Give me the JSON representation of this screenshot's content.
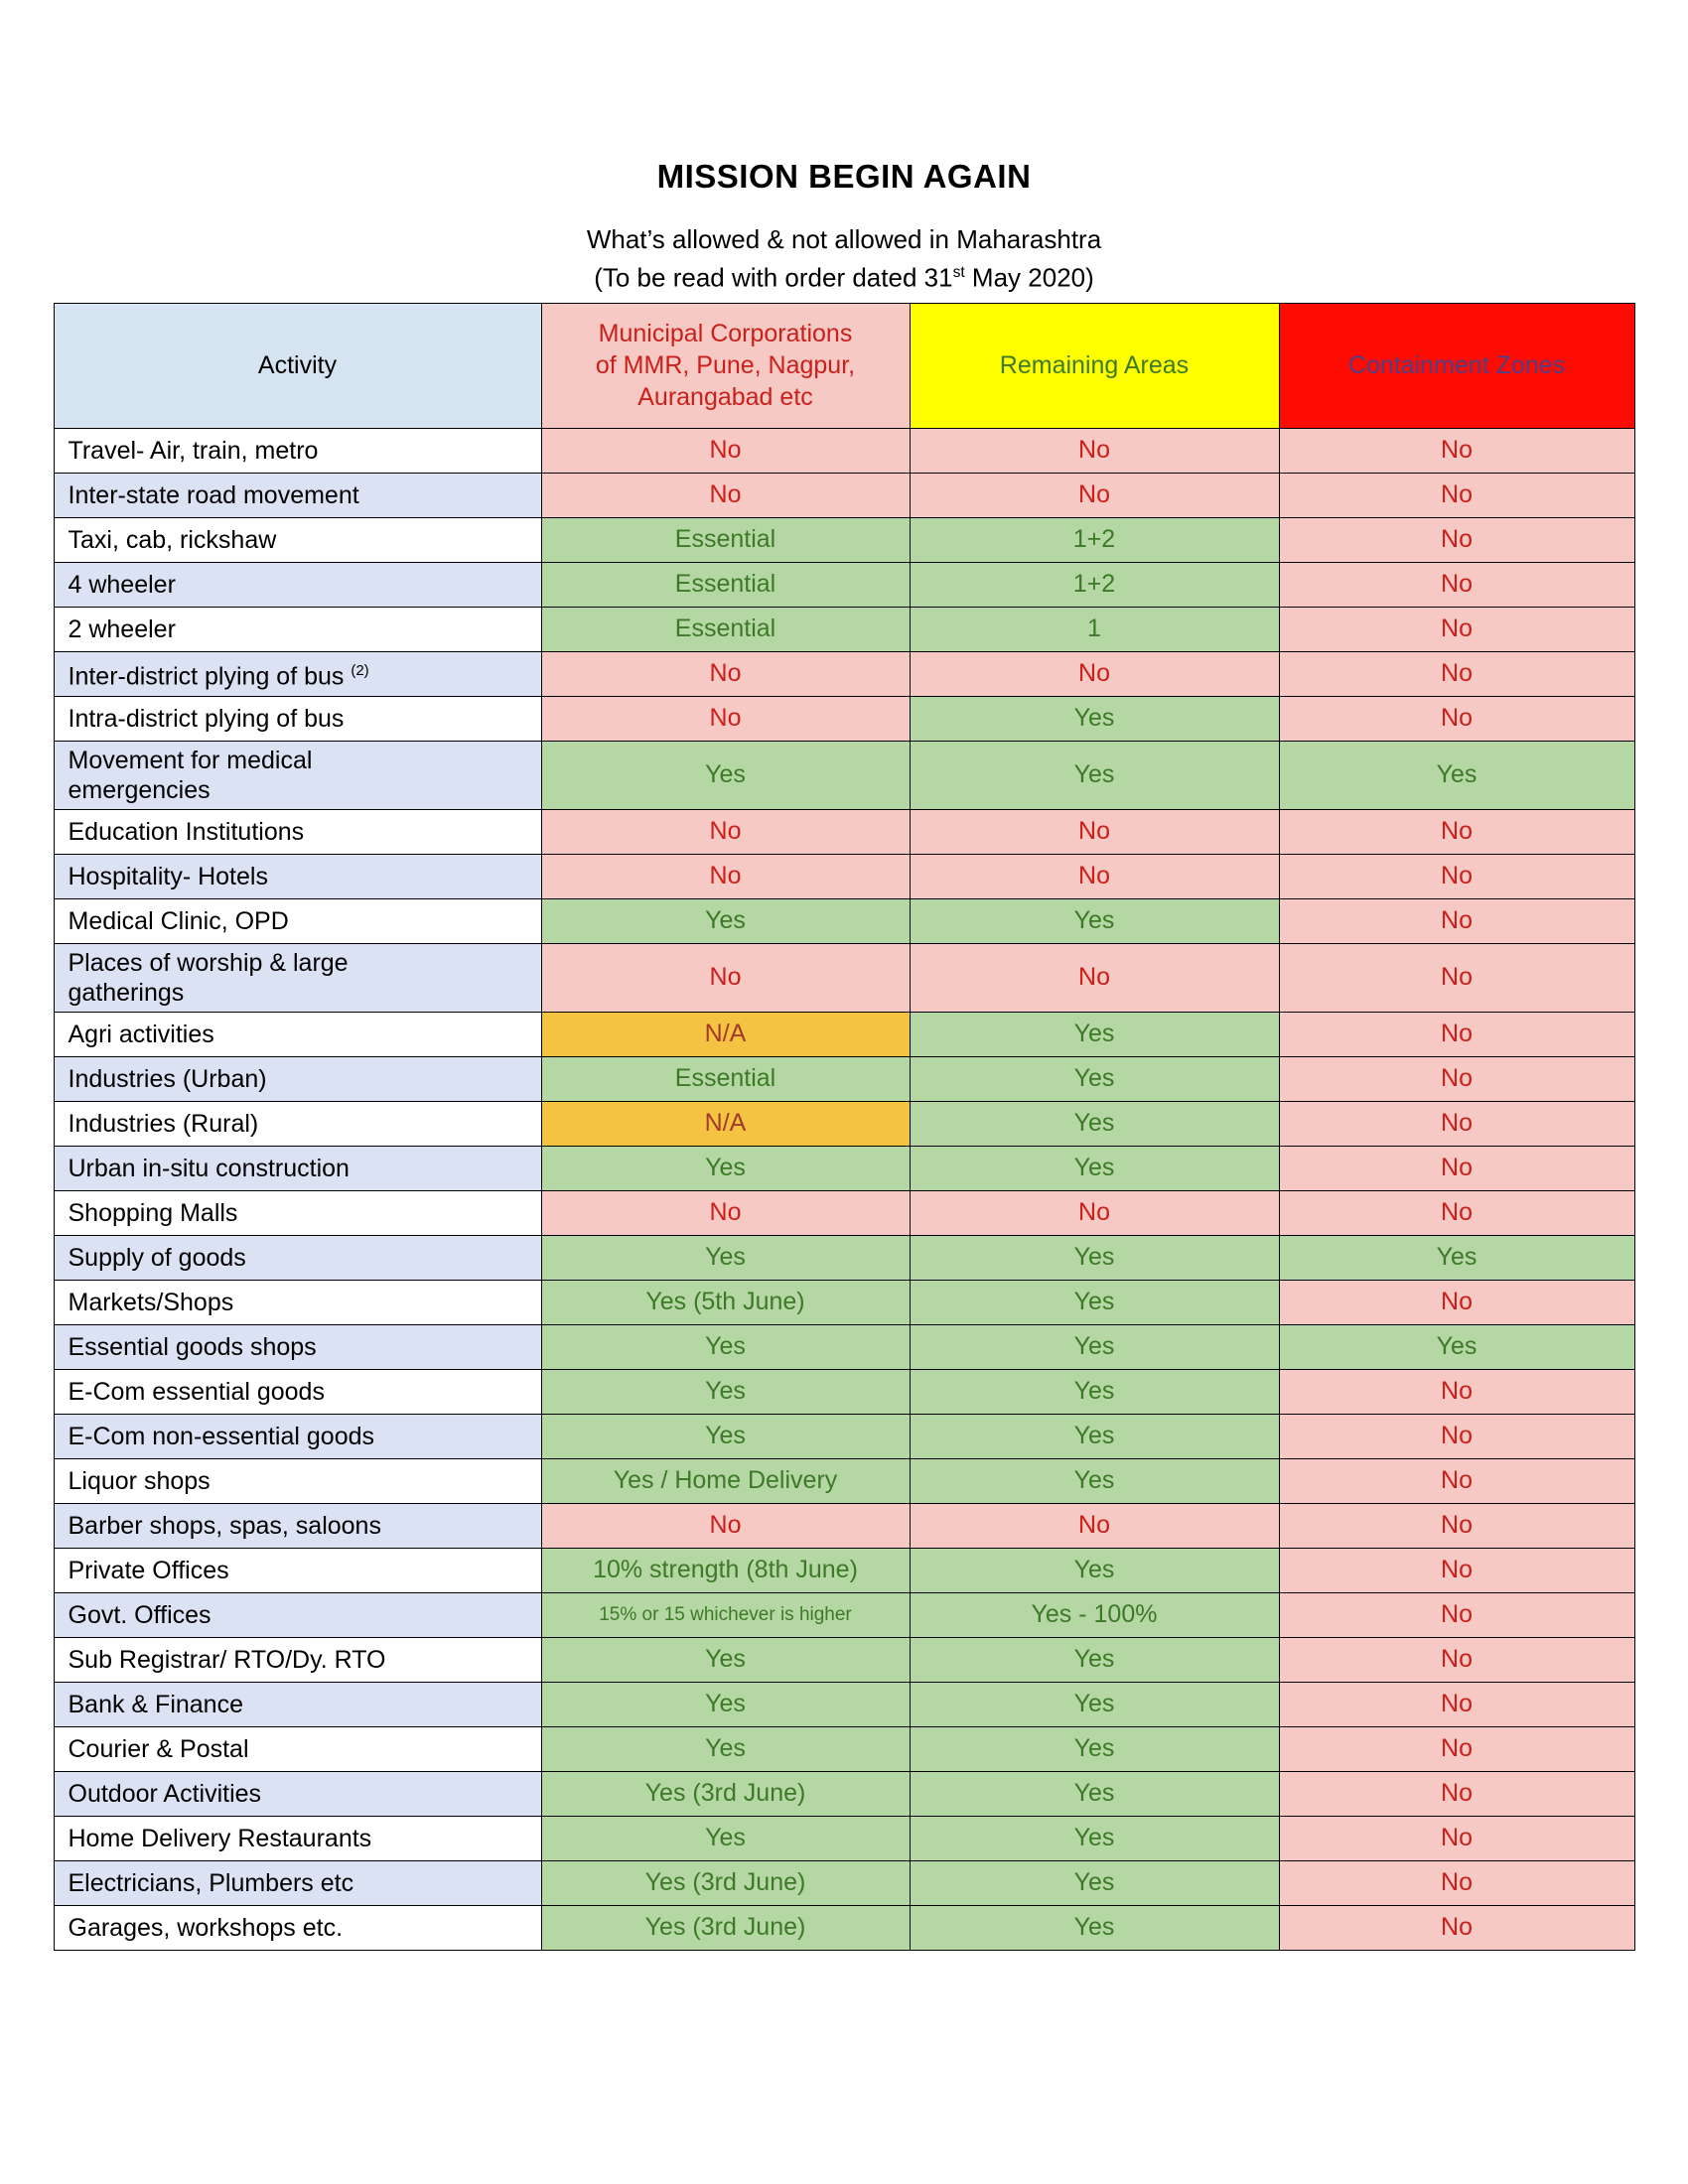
{
  "title": "MISSION BEGIN AGAIN",
  "subtitle": {
    "line1": "What’s allowed & not allowed in Maharashtra",
    "line2_pre": "(To be read with order dated 31",
    "line2_sup": "st",
    "line2_post": " May 2020)"
  },
  "colors": {
    "border": "#000000",
    "header-activity-bg": "#d6e3f1",
    "header-municipal-bg": "#f6c9c5",
    "header-municipal-text": "#cc1f1a",
    "header-remaining-bg": "#ffff00",
    "header-remaining-text": "#3d7a28",
    "header-containment-bg": "#fe0b04",
    "header-containment-text": "#4f3f85",
    "row-alt-bg": "#dbe2f4",
    "no-bg": "#f6c9c5",
    "no-text": "#cc1f1a",
    "yes-bg": "#b5d7a4",
    "yes-text": "#3d7a28",
    "na-bg": "#f5c342",
    "na-text": "#a23b2a"
  },
  "table": {
    "headers": [
      {
        "label": "Activity"
      },
      {
        "label": "Municipal Corporations\nof MMR, Pune, Nagpur,\nAurangabad etc"
      },
      {
        "label": "Remaining Areas"
      },
      {
        "label": "Containment Zones"
      }
    ],
    "rows": [
      {
        "activity": "Travel- Air, train, metro",
        "cells": [
          {
            "text": "No",
            "type": "no"
          },
          {
            "text": "No",
            "type": "no"
          },
          {
            "text": "No",
            "type": "no"
          }
        ]
      },
      {
        "activity": "Inter-state road movement",
        "cells": [
          {
            "text": "No",
            "type": "no"
          },
          {
            "text": "No",
            "type": "no"
          },
          {
            "text": "No",
            "type": "no"
          }
        ]
      },
      {
        "activity": "Taxi, cab, rickshaw",
        "cells": [
          {
            "text": "Essential",
            "type": "yes"
          },
          {
            "text": "1+2",
            "type": "yes"
          },
          {
            "text": "No",
            "type": "no"
          }
        ]
      },
      {
        "activity": "4 wheeler",
        "cells": [
          {
            "text": "Essential",
            "type": "yes"
          },
          {
            "text": "1+2",
            "type": "yes"
          },
          {
            "text": "No",
            "type": "no"
          }
        ]
      },
      {
        "activity": "2 wheeler",
        "cells": [
          {
            "text": "Essential",
            "type": "yes"
          },
          {
            "text": "1",
            "type": "yes"
          },
          {
            "text": "No",
            "type": "no"
          }
        ]
      },
      {
        "activity": "Inter-district plying of bus ",
        "activity_sup": "(2)",
        "cells": [
          {
            "text": "No",
            "type": "no"
          },
          {
            "text": "No",
            "type": "no"
          },
          {
            "text": "No",
            "type": "no"
          }
        ]
      },
      {
        "activity": "Intra-district plying of bus",
        "cells": [
          {
            "text": "No",
            "type": "no"
          },
          {
            "text": "Yes",
            "type": "yes"
          },
          {
            "text": "No",
            "type": "no"
          }
        ]
      },
      {
        "activity": "Movement for medical\nemergencies",
        "cells": [
          {
            "text": "Yes",
            "type": "yes"
          },
          {
            "text": "Yes",
            "type": "yes"
          },
          {
            "text": "Yes",
            "type": "yes"
          }
        ]
      },
      {
        "activity": "Education Institutions",
        "cells": [
          {
            "text": "No",
            "type": "no"
          },
          {
            "text": "No",
            "type": "no"
          },
          {
            "text": "No",
            "type": "no"
          }
        ]
      },
      {
        "activity": "Hospitality- Hotels",
        "cells": [
          {
            "text": "No",
            "type": "no"
          },
          {
            "text": "No",
            "type": "no"
          },
          {
            "text": "No",
            "type": "no"
          }
        ]
      },
      {
        "activity": "Medical Clinic, OPD",
        "cells": [
          {
            "text": "Yes",
            "type": "yes"
          },
          {
            "text": "Yes",
            "type": "yes"
          },
          {
            "text": "No",
            "type": "no"
          }
        ]
      },
      {
        "activity": "Places of worship & large\ngatherings",
        "cells": [
          {
            "text": "No",
            "type": "no"
          },
          {
            "text": "No",
            "type": "no"
          },
          {
            "text": "No",
            "type": "no"
          }
        ]
      },
      {
        "activity": "Agri activities",
        "cells": [
          {
            "text": "N/A",
            "type": "na"
          },
          {
            "text": "Yes",
            "type": "yes"
          },
          {
            "text": "No",
            "type": "no"
          }
        ]
      },
      {
        "activity": "Industries (Urban)",
        "cells": [
          {
            "text": "Essential",
            "type": "yes"
          },
          {
            "text": "Yes",
            "type": "yes"
          },
          {
            "text": "No",
            "type": "no"
          }
        ]
      },
      {
        "activity": "Industries (Rural)",
        "cells": [
          {
            "text": "N/A",
            "type": "na"
          },
          {
            "text": "Yes",
            "type": "yes"
          },
          {
            "text": "No",
            "type": "no"
          }
        ]
      },
      {
        "activity": "Urban in-situ construction",
        "cells": [
          {
            "text": "Yes",
            "type": "yes"
          },
          {
            "text": "Yes",
            "type": "yes"
          },
          {
            "text": "No",
            "type": "no"
          }
        ]
      },
      {
        "activity": "Shopping Malls",
        "cells": [
          {
            "text": "No",
            "type": "no"
          },
          {
            "text": "No",
            "type": "no"
          },
          {
            "text": "No",
            "type": "no"
          }
        ]
      },
      {
        "activity": "Supply of goods",
        "cells": [
          {
            "text": "Yes",
            "type": "yes"
          },
          {
            "text": "Yes",
            "type": "yes"
          },
          {
            "text": "Yes",
            "type": "yes"
          }
        ]
      },
      {
        "activity": "Markets/Shops",
        "cells": [
          {
            "text": "Yes (5th June)",
            "type": "yes"
          },
          {
            "text": "Yes",
            "type": "yes"
          },
          {
            "text": "No",
            "type": "no"
          }
        ]
      },
      {
        "activity": "Essential goods shops",
        "cells": [
          {
            "text": "Yes",
            "type": "yes"
          },
          {
            "text": "Yes",
            "type": "yes"
          },
          {
            "text": "Yes",
            "type": "yes"
          }
        ]
      },
      {
        "activity": "E-Com essential goods",
        "cells": [
          {
            "text": "Yes",
            "type": "yes"
          },
          {
            "text": "Yes",
            "type": "yes"
          },
          {
            "text": "No",
            "type": "no"
          }
        ]
      },
      {
        "activity": "E-Com non-essential goods",
        "cells": [
          {
            "text": "Yes",
            "type": "yes"
          },
          {
            "text": "Yes",
            "type": "yes"
          },
          {
            "text": "No",
            "type": "no"
          }
        ]
      },
      {
        "activity": "Liquor shops",
        "cells": [
          {
            "text": "Yes / Home Delivery",
            "type": "yes"
          },
          {
            "text": "Yes",
            "type": "yes"
          },
          {
            "text": "No",
            "type": "no"
          }
        ]
      },
      {
        "activity": "Barber shops, spas, saloons",
        "cells": [
          {
            "text": "No",
            "type": "no"
          },
          {
            "text": "No",
            "type": "no"
          },
          {
            "text": "No",
            "type": "no"
          }
        ]
      },
      {
        "activity": "Private Offices",
        "cells": [
          {
            "text": "10% strength (8th June)",
            "type": "yes"
          },
          {
            "text": "Yes",
            "type": "yes"
          },
          {
            "text": "No",
            "type": "no"
          }
        ]
      },
      {
        "activity": "Govt. Offices",
        "cells": [
          {
            "text": "15% or 15 whichever is higher",
            "type": "yes",
            "small": true
          },
          {
            "text": "Yes - 100%",
            "type": "yes"
          },
          {
            "text": "No",
            "type": "no"
          }
        ]
      },
      {
        "activity": "Sub Registrar/ RTO/Dy. RTO",
        "cells": [
          {
            "text": "Yes",
            "type": "yes"
          },
          {
            "text": "Yes",
            "type": "yes"
          },
          {
            "text": "No",
            "type": "no"
          }
        ]
      },
      {
        "activity": "Bank & Finance",
        "cells": [
          {
            "text": "Yes",
            "type": "yes"
          },
          {
            "text": "Yes",
            "type": "yes"
          },
          {
            "text": "No",
            "type": "no"
          }
        ]
      },
      {
        "activity": "Courier & Postal",
        "cells": [
          {
            "text": "Yes",
            "type": "yes"
          },
          {
            "text": "Yes",
            "type": "yes"
          },
          {
            "text": "No",
            "type": "no"
          }
        ]
      },
      {
        "activity": "Outdoor Activities",
        "cells": [
          {
            "text": "Yes (3rd June)",
            "type": "yes"
          },
          {
            "text": "Yes",
            "type": "yes"
          },
          {
            "text": "No",
            "type": "no"
          }
        ]
      },
      {
        "activity": "Home Delivery Restaurants",
        "cells": [
          {
            "text": "Yes",
            "type": "yes"
          },
          {
            "text": "Yes",
            "type": "yes"
          },
          {
            "text": "No",
            "type": "no"
          }
        ]
      },
      {
        "activity": "Electricians, Plumbers etc",
        "cells": [
          {
            "text": "Yes (3rd June)",
            "type": "yes"
          },
          {
            "text": "Yes",
            "type": "yes"
          },
          {
            "text": "No",
            "type": "no"
          }
        ]
      },
      {
        "activity": "Garages, workshops etc.",
        "cells": [
          {
            "text": "Yes (3rd June)",
            "type": "yes"
          },
          {
            "text": "Yes",
            "type": "yes"
          },
          {
            "text": "No",
            "type": "no"
          }
        ]
      }
    ]
  }
}
